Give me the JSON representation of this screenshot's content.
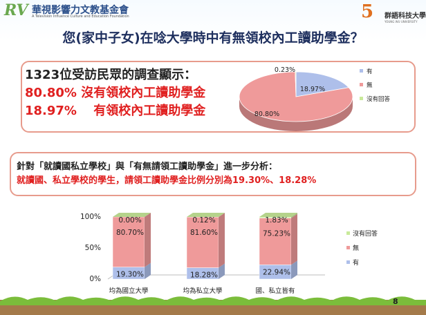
{
  "header": {
    "logo_mark": "RV",
    "org_name": "華視影響力文教基金會",
    "org_sub": "A Television Influence Culture and Education Foundation",
    "corner_mark": "5",
    "corner_name": "群語科技大學",
    "corner_sub": "YOUNG WU UNIVERSITY"
  },
  "title": "您(家中子女)在唸大學時中有無領校內工讀助學金？",
  "survey": {
    "line1": "1323位受訪民眾的調查顯示：",
    "line2": "80.80% 沒有領校內工讀助學金",
    "line3": "18.97%　 有領校內工讀助學金"
  },
  "analysis": {
    "line1": "針對「就讀國私立學校」與「有無請領工讀助學金」進一步分析：",
    "line2": "就讀國、私立學校的學生，請領工讀助學金比例分別為19.30%、18.28%"
  },
  "page_number": "8",
  "colors": {
    "yes": "#aebfea",
    "no": "#ef9a9a",
    "none": "#c9ea9a",
    "title": "#1e2f5e",
    "highlight": "#e02020"
  },
  "chart_data": [
    {
      "type": "pie",
      "categories": [
        "有",
        "無",
        "沒有回答"
      ],
      "values": [
        18.97,
        80.8,
        0.23
      ],
      "labels": [
        "18.97%",
        "80.80%",
        "0.23%"
      ],
      "legend": "right"
    },
    {
      "type": "bar",
      "stacked": true,
      "categories": [
        "均為國立大學",
        "均為私立大學",
        "國、私立皆有"
      ],
      "series": [
        {
          "name": "有",
          "values": [
            19.3,
            18.28,
            22.94
          ]
        },
        {
          "name": "無",
          "values": [
            80.7,
            81.6,
            75.23
          ]
        },
        {
          "name": "沒有回答",
          "values": [
            0.0,
            0.12,
            1.83
          ]
        }
      ],
      "ylim": [
        0,
        100
      ],
      "yticks": [
        "0%",
        "50%",
        "100%"
      ],
      "legend": "right"
    }
  ]
}
